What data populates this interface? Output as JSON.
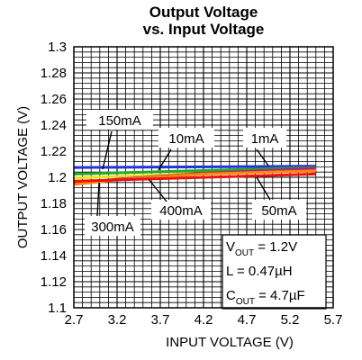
{
  "chart_data": {
    "type": "line",
    "title_line1": "Output Voltage",
    "title_line2": "vs. Input Voltage",
    "xlabel": "INPUT VOLTAGE (V)",
    "ylabel": "OUTPUT VOLTAGE (V)",
    "xlim": [
      2.7,
      5.7
    ],
    "ylim": [
      1.1,
      1.3
    ],
    "x_ticks": [
      "2.7",
      "3.2",
      "3.7",
      "4.2",
      "4.7",
      "5.2",
      "5.7"
    ],
    "y_ticks": [
      "1.3",
      "1.28",
      "1.26",
      "1.24",
      "1.22",
      "1.2",
      "1.18",
      "1.16",
      "1.14",
      "1.12",
      "1.1"
    ],
    "grid": true,
    "minor_grid_divisions": 5,
    "series": [
      {
        "name": "1mA",
        "color": "#2233dd",
        "x": [
          2.7,
          5.5
        ],
        "y": [
          1.2075,
          1.2085
        ]
      },
      {
        "name": "10mA",
        "color": "#22aa22",
        "x": [
          2.7,
          5.5
        ],
        "y": [
          1.2025,
          1.2075
        ]
      },
      {
        "name": "150mA",
        "color": "#e8e020",
        "x": [
          2.7,
          5.5
        ],
        "y": [
          1.1995,
          1.206
        ]
      },
      {
        "name": "300mA",
        "color": "#aa2288",
        "x": [
          2.7,
          3.2,
          4.2,
          5.5
        ],
        "y": [
          1.1955,
          1.1985,
          1.203,
          1.207
        ]
      },
      {
        "name": "400mA",
        "color": "#ff8800",
        "x": [
          2.7,
          3.2,
          4.2,
          5.5
        ],
        "y": [
          1.1945,
          1.198,
          1.2025,
          1.205
        ]
      },
      {
        "name": "50mA",
        "color": "#ee1111",
        "x": [
          2.7,
          5.5
        ],
        "y": [
          1.197,
          1.2025
        ]
      }
    ],
    "annotations": {
      "l150": "150mA",
      "l10": "10mA",
      "l1": "1mA",
      "l300": "300mA",
      "l400": "400mA",
      "l50": "50mA"
    },
    "conditions": {
      "vout_main": "V",
      "vout_sub": "OUT",
      "vout_value": " = 1.2V",
      "l_text": "L = 0.47µH",
      "cout_main": "C",
      "cout_sub": "OUT",
      "cout_value": " = 4.7µF"
    }
  }
}
